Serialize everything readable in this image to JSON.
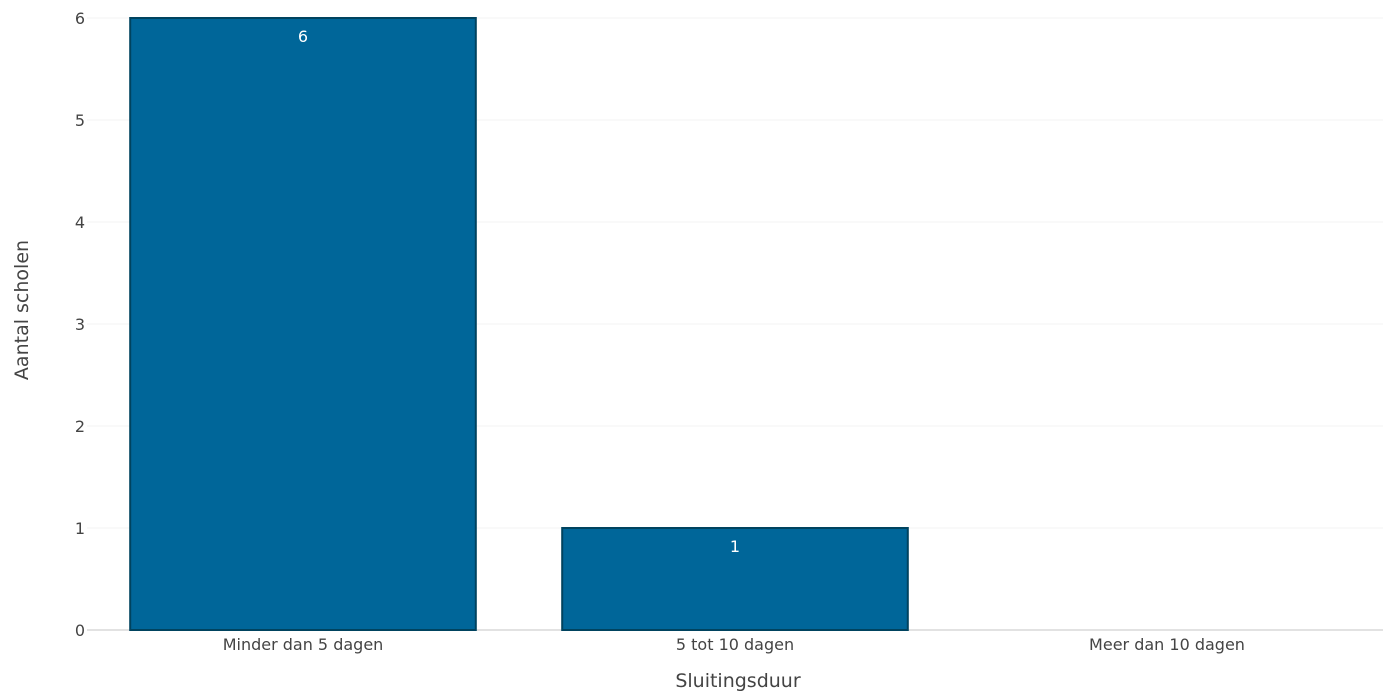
{
  "chart_data": {
    "type": "bar",
    "categories": [
      "Minder dan 5 dagen",
      "5 tot 10 dagen",
      "Meer dan 10 dagen"
    ],
    "values": [
      6,
      1,
      0
    ],
    "data_labels": [
      "6",
      "1",
      ""
    ],
    "xlabel": "Sluitingsduur",
    "ylabel": "Aantal scholen",
    "ylim": [
      0,
      6
    ],
    "yticks": [
      0,
      1,
      2,
      3,
      4,
      5,
      6
    ],
    "grid": true,
    "legend": false,
    "colors": {
      "bar_fill": "#006699",
      "bar_outline": "#00435f",
      "data_label": "#ffffff",
      "tick_text": "#444444",
      "grid": "#f3f3f3"
    }
  }
}
